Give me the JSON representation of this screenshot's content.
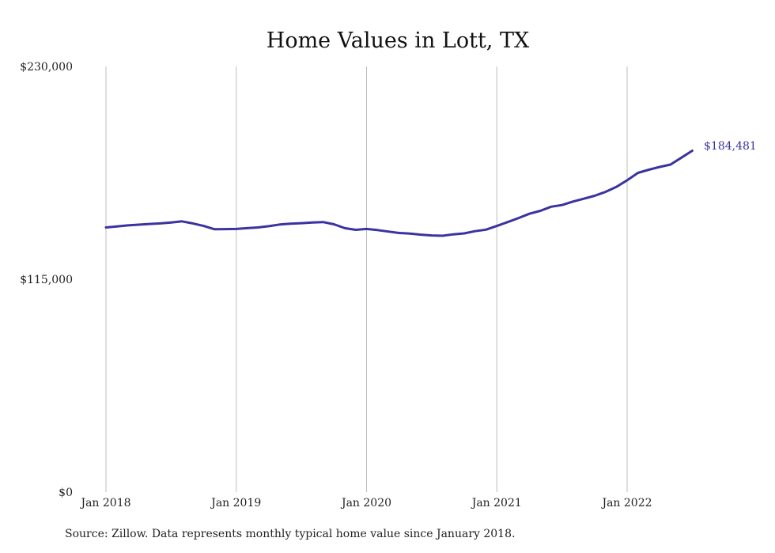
{
  "chart_data": {
    "type": "line",
    "title": "Home Values in Lott, TX",
    "xlabel": "",
    "ylabel": "",
    "ylim": [
      0,
      230000
    ],
    "yticks": [
      {
        "value": 0,
        "label": "$0"
      },
      {
        "value": 115000,
        "label": "$115,000"
      },
      {
        "value": 230000,
        "label": "$230,000"
      }
    ],
    "xticks": [
      {
        "date": "2018-01",
        "label": "Jan 2018"
      },
      {
        "date": "2019-01",
        "label": "Jan 2019"
      },
      {
        "date": "2020-01",
        "label": "Jan 2020"
      },
      {
        "date": "2021-01",
        "label": "Jan 2021"
      },
      {
        "date": "2022-01",
        "label": "Jan 2022"
      }
    ],
    "grid": "vertical",
    "series": [
      {
        "color": "#3a33a0",
        "x": [
          "2018-01",
          "2018-02",
          "2018-03",
          "2018-04",
          "2018-05",
          "2018-06",
          "2018-07",
          "2018-08",
          "2018-09",
          "2018-10",
          "2018-11",
          "2018-12",
          "2019-01",
          "2019-02",
          "2019-03",
          "2019-04",
          "2019-05",
          "2019-06",
          "2019-07",
          "2019-08",
          "2019-09",
          "2019-10",
          "2019-11",
          "2019-12",
          "2020-01",
          "2020-02",
          "2020-03",
          "2020-04",
          "2020-05",
          "2020-06",
          "2020-07",
          "2020-08",
          "2020-09",
          "2020-10",
          "2020-11",
          "2020-12",
          "2021-01",
          "2021-02",
          "2021-03",
          "2021-04",
          "2021-05",
          "2021-06",
          "2021-07",
          "2021-08",
          "2021-09",
          "2021-10",
          "2021-11",
          "2021-12",
          "2022-01",
          "2022-02",
          "2022-03",
          "2022-04",
          "2022-05",
          "2022-06",
          "2022-07"
        ],
        "values": [
          143000,
          143500,
          144100,
          144500,
          144900,
          145200,
          145700,
          146300,
          145200,
          143800,
          142000,
          142100,
          142200,
          142600,
          143000,
          143700,
          144600,
          145000,
          145300,
          145700,
          145900,
          144700,
          142600,
          141700,
          142200,
          141600,
          140800,
          140000,
          139700,
          139100,
          138700,
          138500,
          139300,
          139800,
          141000,
          141800,
          143800,
          145900,
          148100,
          150400,
          152000,
          154200,
          155100,
          157000,
          158500,
          160100,
          162200,
          164900,
          168500,
          172500,
          174200,
          175700,
          177000,
          180700,
          184481
        ]
      }
    ],
    "end_label": "$184,481",
    "source_note": "Source: Zillow. Data represents monthly typical home value since January 2018."
  }
}
